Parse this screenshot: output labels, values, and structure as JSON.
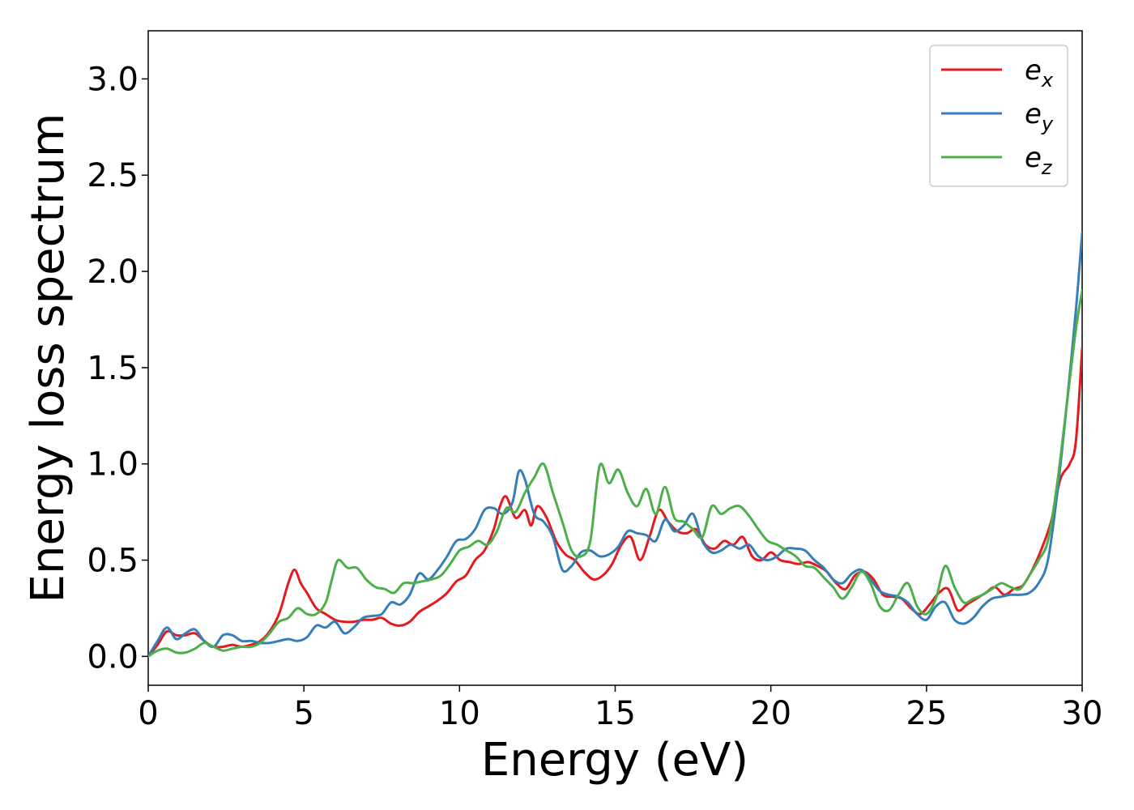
{
  "chart_data": {
    "type": "line",
    "xlabel": "Energy (eV)",
    "ylabel": "Energy loss spectrum",
    "xlim": [
      0,
      30
    ],
    "ylim": [
      -0.15,
      3.25
    ],
    "xticks": [
      0,
      5,
      10,
      15,
      20,
      25,
      30
    ],
    "yticks": [
      0.0,
      0.5,
      1.0,
      1.5,
      2.0,
      2.5,
      3.0
    ],
    "xtick_labels": [
      "0",
      "5",
      "10",
      "15",
      "20",
      "25",
      "30"
    ],
    "ytick_labels": [
      "0.0",
      "0.5",
      "1.0",
      "1.5",
      "2.0",
      "2.5",
      "3.0"
    ],
    "grid": false,
    "legend_position": "top-right",
    "series": [
      {
        "name": "e_x",
        "legend_base": "e",
        "legend_sub": "x",
        "color": "#e41a1c",
        "x": [
          0,
          0.3,
          0.6,
          0.9,
          1.2,
          1.5,
          1.8,
          2.1,
          2.4,
          2.7,
          3.0,
          3.3,
          3.6,
          3.9,
          4.2,
          4.5,
          4.7,
          4.9,
          5.1,
          5.4,
          5.7,
          6.0,
          6.3,
          6.6,
          6.9,
          7.2,
          7.5,
          7.8,
          8.1,
          8.4,
          8.7,
          9.0,
          9.3,
          9.6,
          9.9,
          10.2,
          10.5,
          10.8,
          11.1,
          11.3,
          11.5,
          11.8,
          12.1,
          12.3,
          12.5,
          12.8,
          13.1,
          13.4,
          13.7,
          14.0,
          14.3,
          14.6,
          14.9,
          15.2,
          15.5,
          15.8,
          16.1,
          16.4,
          16.7,
          17.0,
          17.3,
          17.6,
          17.9,
          18.2,
          18.5,
          18.8,
          19.1,
          19.4,
          19.7,
          20.0,
          20.3,
          20.6,
          20.9,
          21.2,
          21.5,
          21.8,
          22.1,
          22.4,
          22.7,
          23.0,
          23.3,
          23.6,
          23.9,
          24.2,
          24.5,
          24.8,
          25.1,
          25.4,
          25.7,
          26.0,
          26.3,
          26.6,
          26.9,
          27.2,
          27.5,
          27.8,
          28.1,
          28.4,
          28.7,
          29.0,
          29.3,
          29.6,
          29.8,
          30.0
        ],
        "y": [
          0,
          0.06,
          0.13,
          0.11,
          0.11,
          0.12,
          0.08,
          0.05,
          0.05,
          0.06,
          0.05,
          0.06,
          0.08,
          0.13,
          0.22,
          0.38,
          0.45,
          0.38,
          0.33,
          0.25,
          0.22,
          0.19,
          0.18,
          0.18,
          0.19,
          0.19,
          0.2,
          0.17,
          0.16,
          0.18,
          0.23,
          0.26,
          0.29,
          0.33,
          0.39,
          0.42,
          0.5,
          0.55,
          0.66,
          0.78,
          0.83,
          0.72,
          0.76,
          0.68,
          0.78,
          0.72,
          0.6,
          0.53,
          0.5,
          0.44,
          0.4,
          0.42,
          0.48,
          0.58,
          0.62,
          0.5,
          0.62,
          0.76,
          0.7,
          0.65,
          0.64,
          0.66,
          0.58,
          0.56,
          0.6,
          0.58,
          0.62,
          0.52,
          0.5,
          0.54,
          0.5,
          0.49,
          0.48,
          0.49,
          0.47,
          0.44,
          0.38,
          0.35,
          0.42,
          0.44,
          0.4,
          0.32,
          0.31,
          0.3,
          0.25,
          0.22,
          0.27,
          0.33,
          0.35,
          0.24,
          0.27,
          0.3,
          0.33,
          0.36,
          0.32,
          0.35,
          0.37,
          0.45,
          0.56,
          0.7,
          0.92,
          1.0,
          1.12,
          1.6
        ]
      },
      {
        "name": "e_y",
        "legend_base": "e",
        "legend_sub": "y",
        "color": "#377eb8",
        "x": [
          0,
          0.3,
          0.6,
          0.9,
          1.2,
          1.5,
          1.8,
          2.1,
          2.4,
          2.7,
          3.0,
          3.3,
          3.6,
          3.9,
          4.2,
          4.5,
          4.8,
          5.1,
          5.4,
          5.7,
          6.0,
          6.3,
          6.6,
          6.9,
          7.2,
          7.5,
          7.8,
          8.1,
          8.4,
          8.7,
          9.0,
          9.3,
          9.6,
          9.9,
          10.2,
          10.5,
          10.8,
          11.1,
          11.4,
          11.7,
          11.9,
          12.1,
          12.4,
          12.7,
          13.0,
          13.3,
          13.6,
          13.9,
          14.2,
          14.5,
          14.8,
          15.1,
          15.4,
          15.7,
          16.0,
          16.3,
          16.6,
          16.9,
          17.2,
          17.5,
          17.8,
          18.1,
          18.4,
          18.7,
          19.0,
          19.3,
          19.6,
          19.9,
          20.2,
          20.5,
          20.8,
          21.1,
          21.4,
          21.7,
          22.0,
          22.3,
          22.6,
          22.9,
          23.2,
          23.5,
          23.8,
          24.1,
          24.4,
          24.7,
          25.0,
          25.3,
          25.6,
          25.9,
          26.2,
          26.5,
          26.8,
          27.1,
          27.4,
          27.7,
          28.0,
          28.3,
          28.6,
          28.9,
          29.2,
          29.5,
          29.8,
          30.0
        ],
        "y": [
          0,
          0.08,
          0.15,
          0.09,
          0.12,
          0.14,
          0.08,
          0.05,
          0.11,
          0.11,
          0.08,
          0.08,
          0.07,
          0.07,
          0.08,
          0.09,
          0.08,
          0.1,
          0.16,
          0.15,
          0.18,
          0.12,
          0.15,
          0.2,
          0.21,
          0.22,
          0.28,
          0.27,
          0.32,
          0.43,
          0.4,
          0.45,
          0.52,
          0.6,
          0.61,
          0.66,
          0.76,
          0.77,
          0.74,
          0.8,
          0.96,
          0.92,
          0.74,
          0.7,
          0.62,
          0.45,
          0.47,
          0.54,
          0.55,
          0.52,
          0.53,
          0.57,
          0.65,
          0.64,
          0.63,
          0.6,
          0.71,
          0.65,
          0.68,
          0.74,
          0.6,
          0.54,
          0.55,
          0.58,
          0.56,
          0.58,
          0.52,
          0.5,
          0.52,
          0.56,
          0.56,
          0.55,
          0.5,
          0.46,
          0.4,
          0.38,
          0.43,
          0.45,
          0.4,
          0.34,
          0.32,
          0.31,
          0.28,
          0.22,
          0.19,
          0.26,
          0.28,
          0.19,
          0.17,
          0.2,
          0.26,
          0.3,
          0.31,
          0.32,
          0.32,
          0.33,
          0.38,
          0.5,
          0.85,
          1.3,
          1.8,
          2.2
        ]
      },
      {
        "name": "e_z",
        "legend_base": "e",
        "legend_sub": "z",
        "color": "#4daf4a",
        "x": [
          0,
          0.3,
          0.6,
          0.9,
          1.2,
          1.5,
          1.8,
          2.1,
          2.4,
          2.7,
          3.0,
          3.3,
          3.6,
          3.9,
          4.2,
          4.5,
          4.8,
          5.1,
          5.4,
          5.7,
          5.9,
          6.1,
          6.4,
          6.7,
          7.0,
          7.3,
          7.6,
          7.9,
          8.2,
          8.5,
          8.8,
          9.1,
          9.4,
          9.7,
          10.0,
          10.3,
          10.6,
          10.9,
          11.2,
          11.5,
          11.8,
          12.1,
          12.4,
          12.7,
          13.0,
          13.3,
          13.6,
          13.9,
          14.2,
          14.5,
          14.8,
          15.1,
          15.4,
          15.7,
          16.0,
          16.3,
          16.6,
          16.9,
          17.2,
          17.5,
          17.8,
          18.1,
          18.4,
          18.7,
          19.0,
          19.3,
          19.6,
          19.9,
          20.2,
          20.5,
          20.8,
          21.1,
          21.4,
          21.7,
          22.0,
          22.3,
          22.6,
          22.9,
          23.2,
          23.5,
          23.8,
          24.1,
          24.4,
          24.7,
          25.0,
          25.3,
          25.6,
          25.9,
          26.2,
          26.5,
          26.8,
          27.1,
          27.4,
          27.7,
          28.0,
          28.3,
          28.6,
          28.9,
          29.2,
          29.5,
          29.8,
          30.0
        ],
        "y": [
          0,
          0.03,
          0.04,
          0.02,
          0.02,
          0.04,
          0.07,
          0.05,
          0.03,
          0.04,
          0.05,
          0.05,
          0.07,
          0.12,
          0.18,
          0.2,
          0.25,
          0.22,
          0.22,
          0.28,
          0.4,
          0.5,
          0.46,
          0.46,
          0.4,
          0.36,
          0.35,
          0.33,
          0.38,
          0.38,
          0.39,
          0.4,
          0.42,
          0.48,
          0.55,
          0.57,
          0.6,
          0.58,
          0.65,
          0.77,
          0.75,
          0.85,
          0.93,
          1.0,
          0.85,
          0.7,
          0.55,
          0.52,
          0.6,
          0.99,
          0.9,
          0.97,
          0.85,
          0.78,
          0.87,
          0.74,
          0.88,
          0.72,
          0.7,
          0.66,
          0.62,
          0.78,
          0.74,
          0.77,
          0.78,
          0.73,
          0.66,
          0.6,
          0.58,
          0.55,
          0.52,
          0.47,
          0.46,
          0.41,
          0.36,
          0.3,
          0.36,
          0.44,
          0.38,
          0.26,
          0.24,
          0.32,
          0.38,
          0.26,
          0.22,
          0.3,
          0.47,
          0.36,
          0.28,
          0.3,
          0.32,
          0.35,
          0.38,
          0.36,
          0.35,
          0.42,
          0.5,
          0.6,
          0.9,
          1.3,
          1.7,
          1.9
        ]
      }
    ]
  }
}
